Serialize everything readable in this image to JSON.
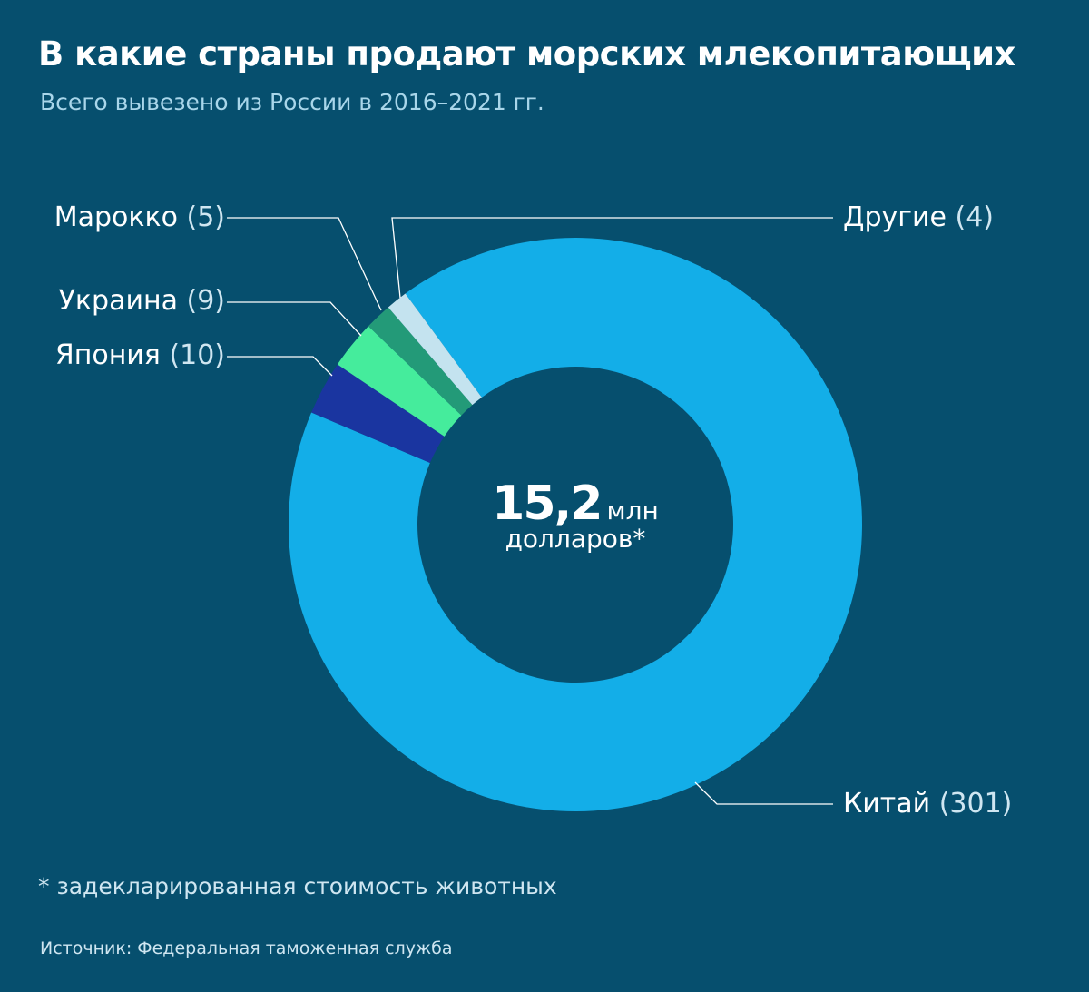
{
  "title": "В какие страны продают морских млекопитающих",
  "subtitle": "Всего вывезено из России в 2016–2021 гг.",
  "center": {
    "value": "15,2",
    "unit": "млн",
    "unit2": "долларов*"
  },
  "note": "* задекларированная стоимость животных",
  "source": "Источник: Федеральная таможенная служба",
  "background": "#064f6e",
  "chart_data": {
    "type": "pie",
    "variant": "donut",
    "categories": [
      "Китай",
      "Япония",
      "Украина",
      "Марокко",
      "Другие"
    ],
    "values": [
      301,
      10,
      9,
      5,
      4
    ],
    "labels": [
      "(301)",
      "(10)",
      "(9)",
      "(5)",
      "(4)"
    ],
    "colors": [
      "#13aee8",
      "#1a35a0",
      "#45ec9c",
      "#239a78",
      "#c4e3ef"
    ],
    "direction": "clockwise"
  }
}
